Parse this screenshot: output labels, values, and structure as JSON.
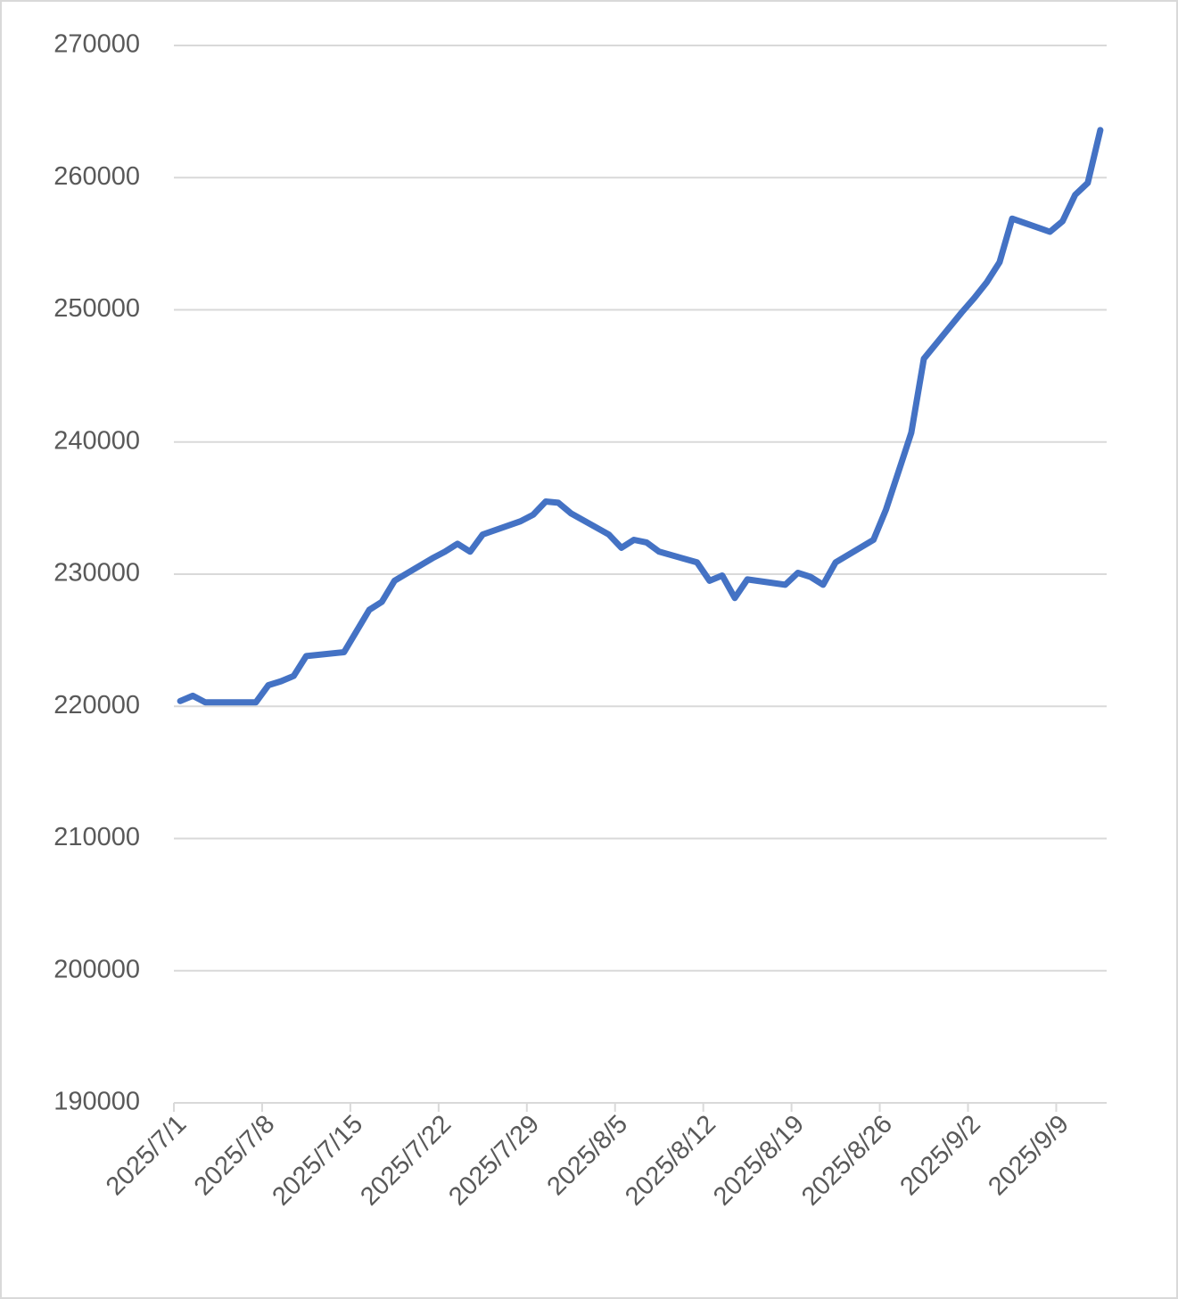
{
  "chart_data": {
    "type": "line",
    "x": [
      "2025/7/1",
      "2025/7/2",
      "2025/7/3",
      "2025/7/4",
      "2025/7/7",
      "2025/7/8",
      "2025/7/9",
      "2025/7/10",
      "2025/7/11",
      "2025/7/14",
      "2025/7/15",
      "2025/7/16",
      "2025/7/17",
      "2025/7/18",
      "2025/7/21",
      "2025/7/22",
      "2025/7/23",
      "2025/7/24",
      "2025/7/25",
      "2025/7/28",
      "2025/7/29",
      "2025/7/30",
      "2025/7/31",
      "2025/8/1",
      "2025/8/4",
      "2025/8/5",
      "2025/8/6",
      "2025/8/7",
      "2025/8/8",
      "2025/8/11",
      "2025/8/12",
      "2025/8/13",
      "2025/8/14",
      "2025/8/15",
      "2025/8/18",
      "2025/8/19",
      "2025/8/20",
      "2025/8/21",
      "2025/8/22",
      "2025/8/25",
      "2025/8/26",
      "2025/8/27",
      "2025/8/28",
      "2025/8/29",
      "2025/9/1",
      "2025/9/2",
      "2025/9/3",
      "2025/9/4",
      "2025/9/5",
      "2025/9/8",
      "2025/9/9",
      "2025/9/10",
      "2025/9/11",
      "2025/9/12"
    ],
    "values": [
      220400,
      220800,
      220300,
      220300,
      220300,
      221600,
      221900,
      222300,
      223800,
      224100,
      225700,
      227300,
      227900,
      229500,
      231200,
      231700,
      232300,
      231700,
      233000,
      234000,
      234500,
      235500,
      235400,
      234600,
      233000,
      232000,
      232600,
      232400,
      231700,
      230900,
      229500,
      229900,
      228200,
      229600,
      229200,
      230100,
      229800,
      229200,
      230900,
      232600,
      234900,
      237800,
      240700,
      246300,
      249800,
      250900,
      252100,
      253600,
      256900,
      255900,
      256700,
      258700,
      259600,
      263600
    ],
    "color": "#4472c4",
    "xlim": [
      "2025/7/1",
      "2025/9/12"
    ],
    "xticks": [
      "2025/7/1",
      "2025/7/8",
      "2025/7/15",
      "2025/7/22",
      "2025/7/29",
      "2025/8/5",
      "2025/8/12",
      "2025/8/19",
      "2025/8/26",
      "2025/9/2",
      "2025/9/9"
    ],
    "ylim": [
      190000,
      270000
    ],
    "yticks": [
      190000,
      200000,
      210000,
      220000,
      230000,
      240000,
      250000,
      260000,
      270000
    ],
    "grid": true
  }
}
